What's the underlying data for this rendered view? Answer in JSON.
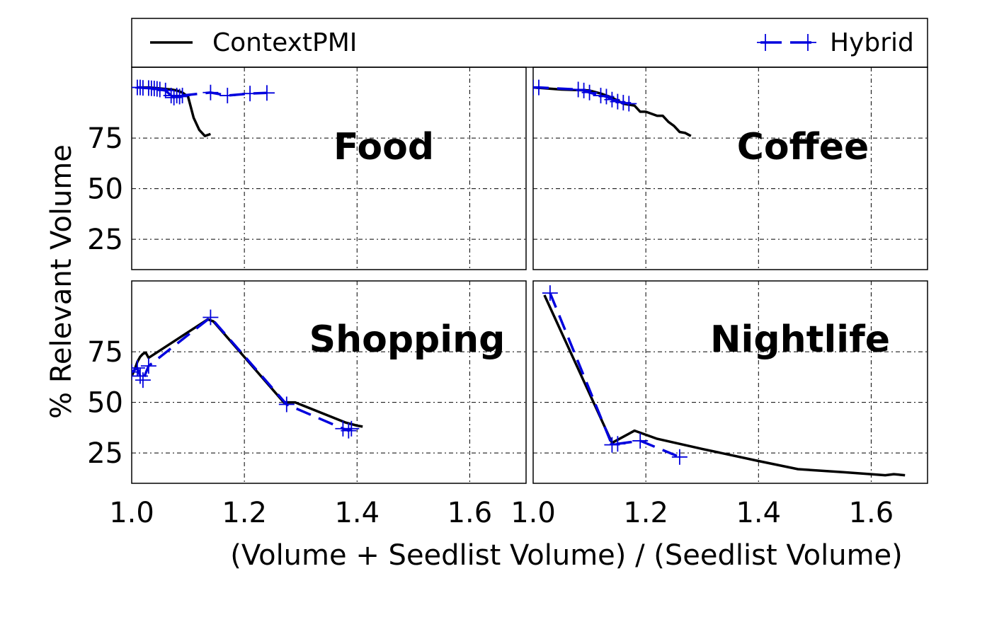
{
  "chart_data": {
    "type": "line",
    "xlabel": "(Volume + Seedlist Volume) / (Seedlist Volume)",
    "ylabel": "% Relevant Volume",
    "xlim": [
      1.0,
      1.7
    ],
    "ylim": [
      10,
      110
    ],
    "xticks": [
      "1.0",
      "1.2",
      "1.4",
      "1.6"
    ],
    "xtick_values": [
      1.0,
      1.2,
      1.4,
      1.6
    ],
    "yticks": [
      "25",
      "50",
      "75"
    ],
    "ytick_values": [
      25,
      50,
      75
    ],
    "grid": true,
    "legend": [
      {
        "name": "ContextPMI",
        "style": "solid",
        "color": "#000000"
      },
      {
        "name": "Hybrid",
        "style": "dashed-plus",
        "color": "#0000dd"
      }
    ],
    "panels": [
      {
        "title": "Food",
        "series": [
          {
            "name": "ContextPMI",
            "x": [
              1.01,
              1.03,
              1.05,
              1.07,
              1.08,
              1.09,
              1.1,
              1.11,
              1.12,
              1.13,
              1.14
            ],
            "y": [
              100,
              100,
              99.5,
              99,
              98.5,
              97.5,
              95.5,
              85,
              79,
              76,
              77
            ]
          },
          {
            "name": "Hybrid",
            "x": [
              1.01,
              1.015,
              1.02,
              1.03,
              1.035,
              1.04,
              1.045,
              1.05,
              1.06,
              1.07,
              1.075,
              1.08,
              1.085,
              1.09,
              1.14,
              1.17,
              1.21,
              1.24
            ],
            "y": [
              100,
              100,
              99.8,
              99.7,
              99.6,
              99.5,
              99.3,
              99,
              98.5,
              96,
              95,
              96,
              95.5,
              96,
              97.5,
              96,
              97,
              97.3
            ]
          }
        ]
      },
      {
        "title": "Coffee",
        "series": [
          {
            "name": "ContextPMI",
            "x": [
              1.0,
              1.05,
              1.1,
              1.12,
              1.14,
              1.16,
              1.18,
              1.19,
              1.2,
              1.22,
              1.23,
              1.24,
              1.25,
              1.26,
              1.27,
              1.28
            ],
            "y": [
              100,
              99,
              98.5,
              97,
              95,
              92,
              91,
              88,
              88,
              86,
              86,
              83,
              81,
              78,
              77.5,
              76
            ]
          },
          {
            "name": "Hybrid",
            "x": [
              1.0,
              1.01,
              1.08,
              1.09,
              1.1,
              1.12,
              1.13,
              1.14,
              1.15,
              1.16,
              1.17
            ],
            "y": [
              100,
              100,
              99,
              98.5,
              97.5,
              96,
              95.5,
              94,
              93,
              92.5,
              92
            ]
          }
        ]
      },
      {
        "title": "Shopping",
        "series": [
          {
            "name": "ContextPMI",
            "x": [
              1.0,
              1.005,
              1.01,
              1.015,
              1.02,
              1.025,
              1.03,
              1.135,
              1.145,
              1.27,
              1.29,
              1.38,
              1.4,
              1.41
            ],
            "y": [
              63,
              66,
              70,
              72.5,
              74,
              74.5,
              72,
              91,
              90,
              50,
              50,
              40,
              38.5,
              38
            ]
          },
          {
            "name": "Hybrid",
            "x": [
              1.0,
              1.01,
              1.015,
              1.02,
              1.03,
              1.14,
              1.275,
              1.375,
              1.385,
              1.39
            ],
            "y": [
              65,
              67,
              63,
              61,
              68,
              92,
              49,
              37,
              36,
              37
            ]
          }
        ]
      },
      {
        "title": "Nightlife",
        "series": [
          {
            "name": "ContextPMI",
            "x": [
              1.02,
              1.14,
              1.18,
              1.22,
              1.3,
              1.4,
              1.47,
              1.55,
              1.6,
              1.625,
              1.64,
              1.66
            ],
            "y": [
              103,
              30,
              36,
              32,
              27,
              21,
              17,
              15.5,
              14.5,
              14,
              14.5,
              14
            ]
          },
          {
            "name": "Hybrid",
            "x": [
              1.03,
              1.14,
              1.15,
              1.19,
              1.26
            ],
            "y": [
              104,
              29,
              29.5,
              31,
              23
            ]
          }
        ]
      }
    ]
  }
}
